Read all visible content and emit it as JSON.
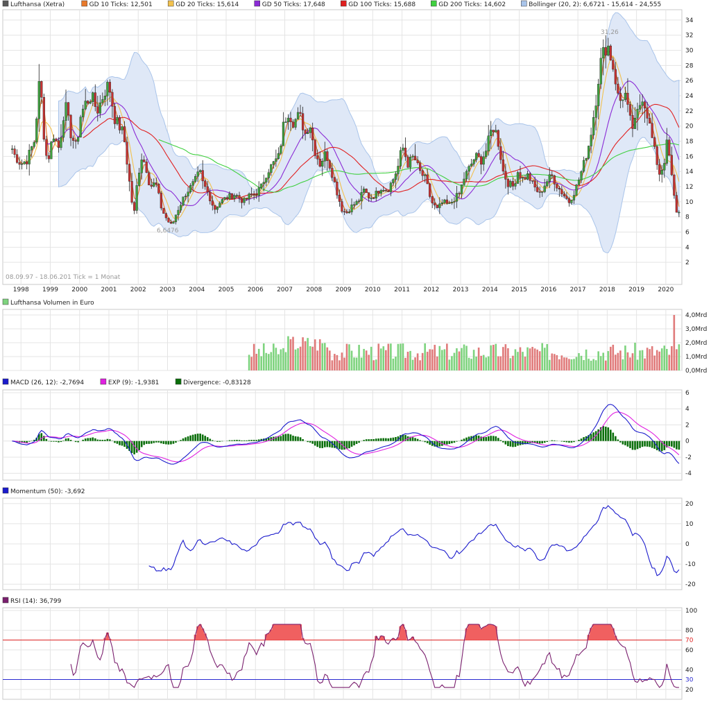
{
  "main": {
    "legend": [
      {
        "label": "Lufthansa (Xetra)",
        "color": "#5a5a5a"
      },
      {
        "label": "GD 10 Ticks: 12,501",
        "color": "#e8792b"
      },
      {
        "label": "GD 20 Ticks: 15,614",
        "color": "#f2c14e"
      },
      {
        "label": "GD 50 Ticks: 17,648",
        "color": "#8b2bd6"
      },
      {
        "label": "GD 100 Ticks: 15,688",
        "color": "#e02020"
      },
      {
        "label": "GD 200 Ticks: 14,602",
        "color": "#40d040"
      },
      {
        "label": "Bollinger (20, 2): 6,6721 - 15,614 - 24,555",
        "color": "#a9c4ea"
      }
    ],
    "date_range": "08.09.97 - 18.06.20",
    "tick_info": "1 Tick = 1 Monat",
    "annotation_high": "31,26",
    "annotation_low": "6,6476"
  },
  "volume": {
    "legend": "Lufthansa Volumen in Euro"
  },
  "macd": {
    "legend": [
      {
        "label": "MACD (26, 12): -2,7694",
        "color": "#1a1acc"
      },
      {
        "label": "EXP (9): -1,9381",
        "color": "#e020e0"
      },
      {
        "label": "Divergence: -0,83128",
        "color": "#0a6e0a"
      }
    ]
  },
  "momentum": {
    "legend": [
      {
        "label": "Momentum (50): -3,692",
        "color": "#1a1acc"
      }
    ]
  },
  "rsi": {
    "legend": [
      {
        "label": "RSI (14): 36,799",
        "color": "#7a1f6e"
      }
    ]
  },
  "chart_data": [
    {
      "type": "line",
      "name": "price",
      "x": [
        1998,
        1999,
        2000,
        2001,
        2002,
        2003,
        2004,
        2005,
        2006,
        2007,
        2008,
        2009,
        2010,
        2011,
        2012,
        2013,
        2014,
        2015,
        2016,
        2017,
        2018,
        2019,
        2020
      ],
      "xtick_labels": [
        "1998",
        "1999",
        "2000",
        "2001",
        "2002",
        "2003",
        "2004",
        "2005",
        "2006",
        "2007",
        "2008",
        "2009",
        "2010",
        "2011",
        "2012",
        "2013",
        "2014",
        "2015",
        "2016",
        "2017",
        "2018",
        "2019",
        "2020"
      ],
      "y_ticks": [
        "2",
        "4",
        "6",
        "8",
        "10",
        "12",
        "14",
        "16",
        "18",
        "20",
        "22",
        "24",
        "26",
        "28",
        "30",
        "32",
        "34"
      ],
      "ylim": [
        0,
        35
      ],
      "x_range": [
        1997.9,
        2020.5
      ],
      "anchors": [
        [
          1997.7,
          17
        ],
        [
          1997.8,
          16
        ],
        [
          1998.0,
          15
        ],
        [
          1998.2,
          15.5
        ],
        [
          1998.45,
          18
        ],
        [
          1998.55,
          22
        ],
        [
          1998.65,
          27
        ],
        [
          1998.75,
          20
        ],
        [
          1998.9,
          15
        ],
        [
          1999.1,
          19
        ],
        [
          1999.3,
          17
        ],
        [
          1999.5,
          23
        ],
        [
          1999.7,
          19
        ],
        [
          1999.9,
          17
        ],
        [
          2000.0,
          21
        ],
        [
          2000.2,
          23
        ],
        [
          2000.4,
          24
        ],
        [
          2000.6,
          22
        ],
        [
          2000.9,
          25
        ],
        [
          2001.0,
          25.5
        ],
        [
          2001.2,
          21
        ],
        [
          2001.5,
          19
        ],
        [
          2001.75,
          11
        ],
        [
          2001.85,
          8
        ],
        [
          2001.95,
          12
        ],
        [
          2002.1,
          16
        ],
        [
          2002.25,
          15
        ],
        [
          2002.4,
          12
        ],
        [
          2002.6,
          12.5
        ],
        [
          2002.8,
          9
        ],
        [
          2003.0,
          7.5
        ],
        [
          2003.15,
          6.8
        ],
        [
          2003.3,
          8.5
        ],
        [
          2003.6,
          11
        ],
        [
          2003.9,
          12.5
        ],
        [
          2004.1,
          14
        ],
        [
          2004.2,
          12.5
        ],
        [
          2004.4,
          11
        ],
        [
          2004.6,
          9
        ],
        [
          2004.8,
          10
        ],
        [
          2005.0,
          10.5
        ],
        [
          2005.3,
          11
        ],
        [
          2005.6,
          10
        ],
        [
          2005.8,
          10.8
        ],
        [
          2006.0,
          11
        ],
        [
          2006.2,
          12
        ],
        [
          2006.4,
          14
        ],
        [
          2006.6,
          15
        ],
        [
          2006.8,
          16
        ],
        [
          2006.95,
          20
        ],
        [
          2007.1,
          22
        ],
        [
          2007.3,
          20.5
        ],
        [
          2007.5,
          21.5
        ],
        [
          2007.7,
          19
        ],
        [
          2007.85,
          20.5
        ],
        [
          2008.0,
          17
        ],
        [
          2008.2,
          15
        ],
        [
          2008.4,
          16.5
        ],
        [
          2008.6,
          14
        ],
        [
          2008.8,
          11
        ],
        [
          2008.95,
          9
        ],
        [
          2009.1,
          8.5
        ],
        [
          2009.3,
          9.5
        ],
        [
          2009.5,
          10
        ],
        [
          2009.7,
          11.5
        ],
        [
          2009.9,
          10.5
        ],
        [
          2010.1,
          11
        ],
        [
          2010.3,
          12
        ],
        [
          2010.5,
          11.5
        ],
        [
          2010.7,
          13
        ],
        [
          2010.9,
          15
        ],
        [
          2011.0,
          17.5
        ],
        [
          2011.2,
          15
        ],
        [
          2011.4,
          16
        ],
        [
          2011.6,
          14
        ],
        [
          2011.8,
          13
        ],
        [
          2012.0,
          10
        ],
        [
          2012.2,
          9
        ],
        [
          2012.4,
          10
        ],
        [
          2012.6,
          9.5
        ],
        [
          2012.8,
          10.5
        ],
        [
          2012.95,
          11
        ],
        [
          2013.1,
          13
        ],
        [
          2013.3,
          14.5
        ],
        [
          2013.5,
          16
        ],
        [
          2013.7,
          15.5
        ],
        [
          2013.9,
          17
        ],
        [
          2014.0,
          19
        ],
        [
          2014.15,
          20
        ],
        [
          2014.3,
          17.5
        ],
        [
          2014.45,
          14
        ],
        [
          2014.6,
          12.5
        ],
        [
          2014.8,
          12
        ],
        [
          2014.95,
          14
        ],
        [
          2015.1,
          13
        ],
        [
          2015.3,
          13.5
        ],
        [
          2015.5,
          12
        ],
        [
          2015.7,
          11
        ],
        [
          2015.9,
          12.5
        ],
        [
          2016.1,
          13.5
        ],
        [
          2016.3,
          12
        ],
        [
          2016.5,
          11
        ],
        [
          2016.7,
          10
        ],
        [
          2016.9,
          11.5
        ],
        [
          2017.0,
          12.5
        ],
        [
          2017.2,
          15
        ],
        [
          2017.4,
          18
        ],
        [
          2017.6,
          23
        ],
        [
          2017.75,
          28
        ],
        [
          2017.9,
          30
        ],
        [
          2018.0,
          31
        ],
        [
          2018.1,
          29.5
        ],
        [
          2018.25,
          27
        ],
        [
          2018.4,
          23
        ],
        [
          2018.6,
          24.5
        ],
        [
          2018.75,
          21
        ],
        [
          2018.9,
          19.5
        ],
        [
          2019.05,
          22
        ],
        [
          2019.2,
          24
        ],
        [
          2019.35,
          22
        ],
        [
          2019.5,
          19
        ],
        [
          2019.65,
          16
        ],
        [
          2019.8,
          13.5
        ],
        [
          2019.95,
          15.5
        ],
        [
          2020.05,
          18
        ],
        [
          2020.15,
          15
        ],
        [
          2020.25,
          11.5
        ],
        [
          2020.35,
          9
        ],
        [
          2020.42,
          8
        ],
        [
          2020.5,
          9.5
        ]
      ],
      "moving_averages": [
        {
          "name": "GD 10 Ticks",
          "smooth": 10,
          "color": "#e8792b"
        },
        {
          "name": "GD 20 Ticks",
          "smooth": 20,
          "color": "#f2c14e"
        },
        {
          "name": "GD 50 Ticks",
          "smooth": 50,
          "color": "#8b2bd6"
        },
        {
          "name": "GD 100 Ticks",
          "smooth": 100,
          "color": "#e02020"
        },
        {
          "name": "GD 200 Ticks",
          "smooth": 200,
          "color": "#40d040"
        }
      ],
      "bollinger": {
        "period": 20,
        "k": 2
      }
    },
    {
      "type": "bar",
      "name": "volume",
      "y_ticks": [
        "0,0Mrd",
        "1,0Mrd",
        "2,0Mrd",
        "3,0Mrd",
        "4,0Mrd"
      ],
      "ylim": [
        0,
        4
      ],
      "start_year": 2005.75,
      "spike": {
        "year": 2020.25,
        "value": 4.0
      }
    },
    {
      "type": "line",
      "name": "macd",
      "y_ticks": [
        "-4",
        "-2",
        "0",
        "2",
        "4",
        "6"
      ],
      "ylim": [
        -4.5,
        6
      ]
    },
    {
      "type": "line",
      "name": "momentum",
      "y_ticks": [
        "-20",
        "-10",
        "0",
        "10",
        "20"
      ],
      "ylim": [
        -22,
        22
      ],
      "period": 50
    },
    {
      "type": "line",
      "name": "rsi",
      "y_ticks": [
        "20",
        "30",
        "40",
        "60",
        "70",
        "80",
        "100"
      ],
      "ylim": [
        10,
        100
      ],
      "upper": 70,
      "lower": 30
    }
  ]
}
